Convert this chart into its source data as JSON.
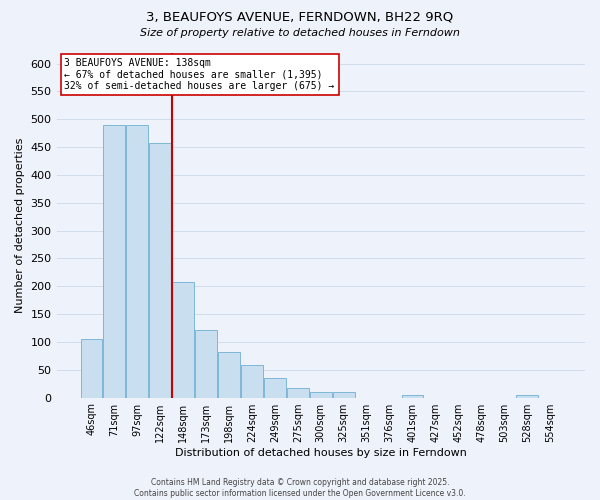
{
  "title": "3, BEAUFOYS AVENUE, FERNDOWN, BH22 9RQ",
  "subtitle": "Size of property relative to detached houses in Ferndown",
  "xlabel": "Distribution of detached houses by size in Ferndown",
  "ylabel": "Number of detached properties",
  "bar_labels": [
    "46sqm",
    "71sqm",
    "97sqm",
    "122sqm",
    "148sqm",
    "173sqm",
    "198sqm",
    "224sqm",
    "249sqm",
    "275sqm",
    "300sqm",
    "325sqm",
    "351sqm",
    "376sqm",
    "401sqm",
    "427sqm",
    "452sqm",
    "478sqm",
    "503sqm",
    "528sqm",
    "554sqm"
  ],
  "bar_values": [
    105,
    490,
    490,
    458,
    208,
    122,
    82,
    58,
    36,
    18,
    10,
    10,
    0,
    0,
    5,
    0,
    0,
    0,
    0,
    5,
    0
  ],
  "bar_color": "#c9dff0",
  "bar_edge_color": "#7eb8d8",
  "grid_color": "#d0dcea",
  "background_color": "#eef2fa",
  "vline_color": "#cc0000",
  "vline_pos": 3.5,
  "annotation_line1": "3 BEAUFOYS AVENUE: 138sqm",
  "annotation_line2": "← 67% of detached houses are smaller (1,395)",
  "annotation_line3": "32% of semi-detached houses are larger (675) →",
  "footer1": "Contains HM Land Registry data © Crown copyright and database right 2025.",
  "footer2": "Contains public sector information licensed under the Open Government Licence v3.0.",
  "ylim": [
    0,
    620
  ],
  "yticks": [
    0,
    50,
    100,
    150,
    200,
    250,
    300,
    350,
    400,
    450,
    500,
    550,
    600
  ]
}
